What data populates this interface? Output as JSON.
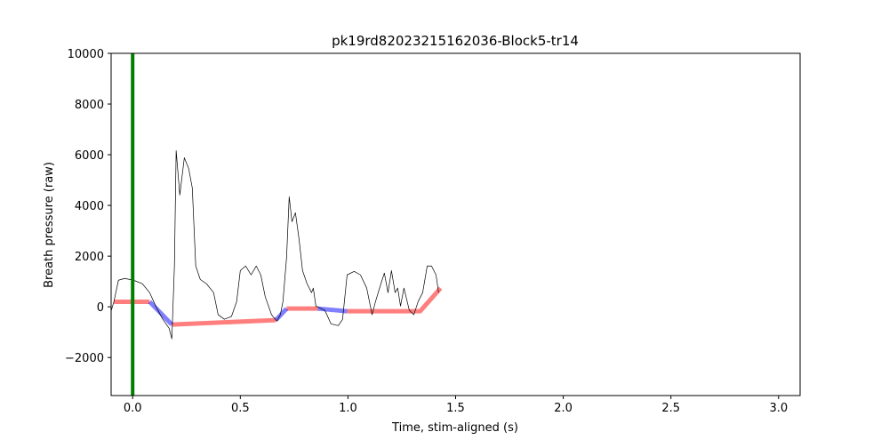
{
  "chart_data": {
    "type": "line",
    "title": "pk19rd82023215162036-Block5-tr14",
    "xlabel": "Time, stim-aligned (s)",
    "ylabel": "Breath pressure (raw)",
    "xlim": [
      -0.1,
      3.1
    ],
    "ylim": [
      -3500,
      10000
    ],
    "xticks": [
      {
        "value": 0,
        "label": "0.0"
      },
      {
        "value": 0.5,
        "label": "0.5"
      },
      {
        "value": 1,
        "label": "1.0"
      },
      {
        "value": 1.5,
        "label": "1.5"
      },
      {
        "value": 2,
        "label": "2.0"
      },
      {
        "value": 2.5,
        "label": "2.5"
      },
      {
        "value": 3,
        "label": "3.0"
      }
    ],
    "yticks": [
      {
        "value": -2000,
        "label": "−2000"
      },
      0,
      2000,
      4000,
      6000,
      8000,
      10000
    ],
    "grid": false,
    "vlines": [
      {
        "x": 0,
        "color": "#008000",
        "linewidth": 4
      }
    ],
    "series": [
      {
        "color": "#ff0000",
        "alpha": 0.5,
        "linewidth": 5,
        "x": [
          -0.087,
          0.079,
          null,
          0.182,
          0.665,
          null,
          0.715,
          0.86,
          null,
          0.996,
          1.335,
          1.43
        ],
        "values": [
          200,
          200,
          null,
          -700,
          -525,
          null,
          -70,
          -70,
          null,
          -175,
          -175,
          735
        ]
      },
      {
        "color": "#0000ff",
        "alpha": 0.5,
        "linewidth": 5,
        "x": [
          0.079,
          0.182,
          null,
          0.665,
          0.715,
          null,
          0.86,
          0.996
        ],
        "values": [
          200,
          -700,
          null,
          -525,
          -70,
          null,
          -70,
          -175
        ]
      },
      {
        "color": "#000000",
        "alpha": 1,
        "linewidth": 0.7,
        "x": [
          -0.099,
          -0.087,
          -0.066,
          -0.037,
          0.004,
          0.045,
          0.079,
          0.107,
          0.14,
          0.169,
          0.182,
          0.194,
          0.202,
          0.219,
          0.24,
          0.26,
          0.277,
          0.293,
          0.314,
          0.343,
          0.376,
          0.397,
          0.426,
          0.459,
          0.483,
          0.5,
          0.525,
          0.55,
          0.574,
          0.595,
          0.616,
          0.645,
          0.669,
          0.686,
          0.698,
          0.715,
          0.727,
          0.74,
          0.756,
          0.773,
          0.789,
          0.81,
          0.831,
          0.839,
          0.851,
          0.893,
          0.921,
          0.955,
          0.975,
          0.996,
          1.029,
          1.058,
          1.087,
          1.112,
          1.128,
          1.153,
          1.169,
          1.186,
          1.202,
          1.219,
          1.231,
          1.244,
          1.26,
          1.285,
          1.306,
          1.326,
          1.347,
          1.368,
          1.388,
          1.409,
          1.421
        ],
        "values": [
          -140,
          210,
          1050,
          1120,
          1050,
          910,
          560,
          30,
          -490,
          -840,
          -1260,
          1610,
          6160,
          4410,
          5880,
          5460,
          4690,
          1610,
          1080,
          910,
          560,
          -310,
          -490,
          -380,
          210,
          1430,
          1610,
          1260,
          1610,
          1260,
          390,
          -310,
          -560,
          -310,
          210,
          1960,
          4340,
          3360,
          3710,
          2660,
          1430,
          910,
          560,
          740,
          30,
          -140,
          -670,
          -740,
          -490,
          1260,
          1400,
          1260,
          740,
          -310,
          210,
          910,
          1330,
          560,
          1430,
          560,
          740,
          30,
          740,
          -140,
          -310,
          210,
          560,
          1610,
          1610,
          1260,
          560
        ]
      }
    ]
  }
}
